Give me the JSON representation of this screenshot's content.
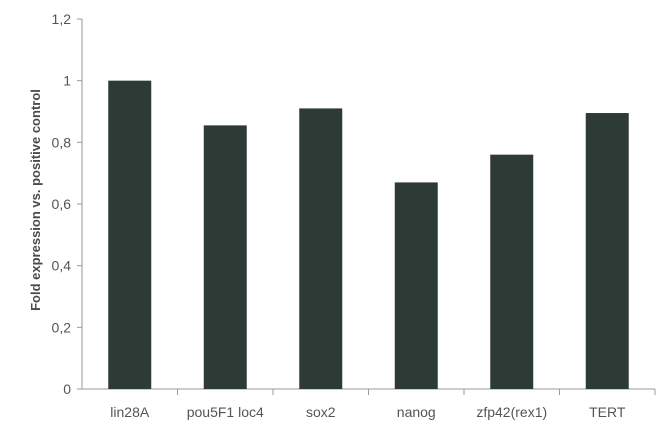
{
  "chart_data": {
    "type": "bar",
    "title": "",
    "xlabel": "",
    "ylabel": "Fold expression vs. positive control",
    "categories": [
      "lin28A",
      "pou5F1 loc4",
      "sox2",
      "nanog",
      "zfp42(rex1)",
      "TERT"
    ],
    "values": [
      1.0,
      0.855,
      0.91,
      0.67,
      0.76,
      0.895
    ],
    "ylim": [
      0,
      1.2
    ],
    "yticks": [
      "0",
      "0,2",
      "0,4",
      "0,6",
      "0,8",
      "1",
      "1,2"
    ],
    "grid": false,
    "legend": "none",
    "bar_color": "#2e3a35",
    "axis_color": "#9a9a9a",
    "text_color": "#555555"
  }
}
